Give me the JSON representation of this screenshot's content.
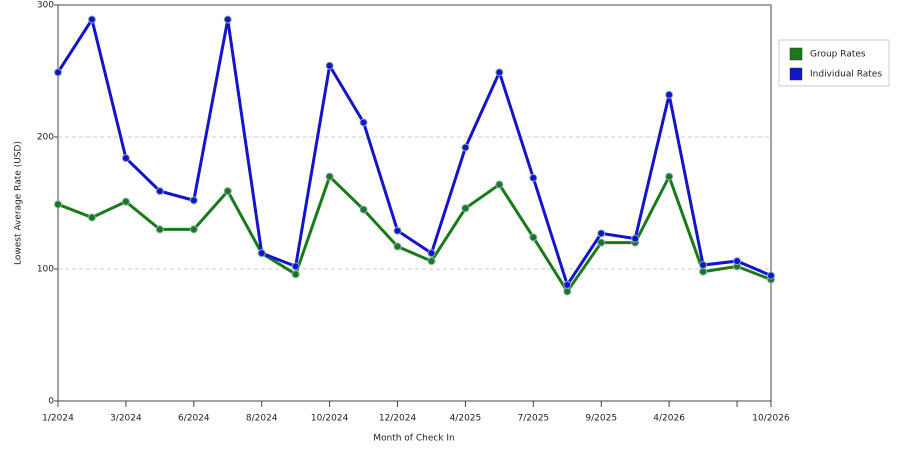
{
  "chart_data": {
    "type": "line",
    "x_label": "Month of Check In",
    "y_label": "Lowest Average Rate (USD)",
    "categories": [
      "1/2024",
      null,
      "3/2024",
      null,
      "6/2024",
      null,
      "8/2024",
      null,
      "10/2024",
      null,
      "12/2024",
      null,
      "4/2025",
      null,
      "7/2025",
      null,
      "9/2025",
      null,
      "4/2026",
      null,
      null,
      "10/2026"
    ],
    "series": [
      {
        "name": "Group Rates",
        "color": "#1a7a1a",
        "values": [
          149,
          139,
          151,
          130,
          130,
          159,
          112,
          96,
          170,
          145,
          117,
          106,
          146,
          164,
          124,
          83,
          120,
          120,
          170,
          98,
          102,
          92
        ]
      },
      {
        "name": "Individual Rates",
        "color": "#1414c8",
        "values": [
          249,
          289,
          184,
          159,
          152,
          289,
          112,
          102,
          254,
          211,
          129,
          112,
          192,
          249,
          169,
          88,
          127,
          123,
          232,
          103,
          106,
          95
        ]
      }
    ],
    "ylim": [
      0,
      300
    ],
    "yticks": [
      0,
      100,
      200,
      300
    ],
    "grid": true
  }
}
